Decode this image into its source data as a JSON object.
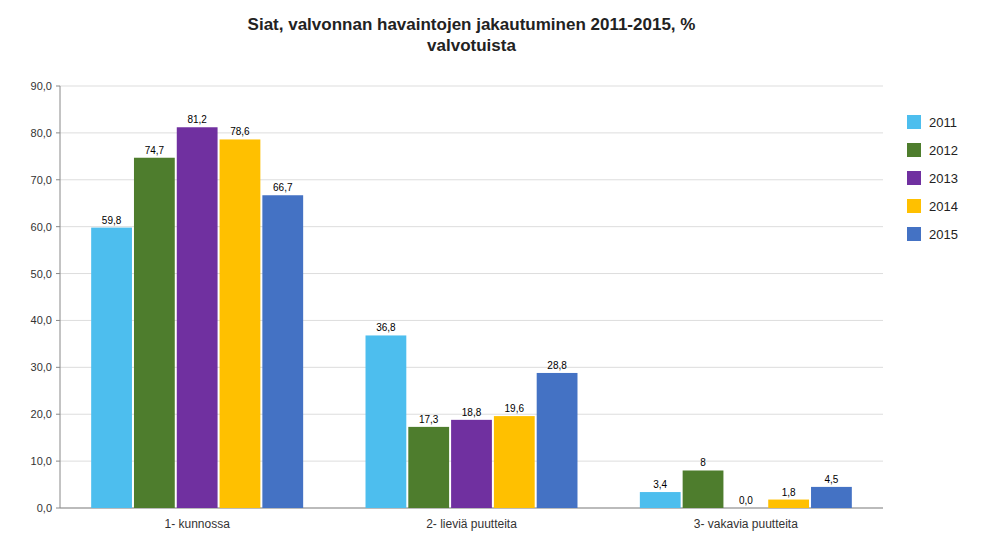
{
  "chart_data": {
    "type": "bar",
    "title": "Siat, valvonnan havaintojen jakautuminen 2011-2015, %\nvalvotuista",
    "categories": [
      "1- kunnossa",
      "2- lieviä puutteita",
      "3- vakavia puutteita"
    ],
    "series": [
      {
        "name": "2011",
        "color": "#4DBEEE",
        "values": [
          59.8,
          36.8,
          3.4
        ],
        "value_labels": [
          "59,8",
          "36,8",
          "3,4"
        ]
      },
      {
        "name": "2012",
        "color": "#4E7D2D",
        "values": [
          74.7,
          17.3,
          8.0
        ],
        "value_labels": [
          "74,7",
          "17,3",
          "8"
        ]
      },
      {
        "name": "2013",
        "color": "#7030A0",
        "values": [
          81.2,
          18.8,
          0.0
        ],
        "value_labels": [
          "81,2",
          "18,8",
          "0,0"
        ]
      },
      {
        "name": "2014",
        "color": "#FFC000",
        "values": [
          78.6,
          19.6,
          1.8
        ],
        "value_labels": [
          "78,6",
          "19,6",
          "1,8"
        ]
      },
      {
        "name": "2015",
        "color": "#4472C4",
        "values": [
          66.7,
          28.8,
          4.5
        ],
        "value_labels": [
          "66,7",
          "28,8",
          "4,5"
        ]
      }
    ],
    "ylim": [
      0,
      90
    ],
    "yticks": [
      {
        "value": 0,
        "label": "0,0"
      },
      {
        "value": 10,
        "label": "10,0"
      },
      {
        "value": 20,
        "label": "20,0"
      },
      {
        "value": 30,
        "label": "30,0"
      },
      {
        "value": 40,
        "label": "40,0"
      },
      {
        "value": 50,
        "label": "50,0"
      },
      {
        "value": 60,
        "label": "60,0"
      },
      {
        "value": 70,
        "label": "70,0"
      },
      {
        "value": 80,
        "label": "80,0"
      },
      {
        "value": 90,
        "label": "90,0"
      }
    ],
    "grid": true,
    "legend": "right",
    "data_labels": true
  }
}
